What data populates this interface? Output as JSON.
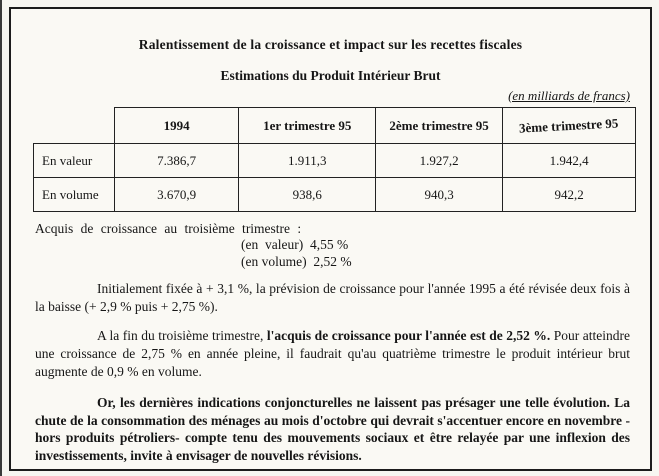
{
  "document": {
    "title": "Ralentissement de la croissance et impact sur les recettes fiscales",
    "subtitle": "Estimations du Produit Intérieur Brut",
    "unit_note": "(en milliards de francs)",
    "table": {
      "columns": [
        "1994",
        "1er trimestre 95",
        "2ème trimestre 95",
        "3ème trimestre 95"
      ],
      "rows": [
        {
          "label": "En valeur",
          "values": [
            "7.386,7",
            "1.911,3",
            "1.927,2",
            "1.942,4"
          ]
        },
        {
          "label": "En volume",
          "values": [
            "3.670,9",
            "938,6",
            "940,3",
            "942,2"
          ]
        }
      ]
    },
    "acquis": {
      "intro": "Acquis de croissance au troisième trimestre :",
      "valeur": "(en  valeur)  4,55 %",
      "volume": "(en volume)  2,52 %"
    },
    "paragraphs": [
      {
        "segments": [
          {
            "text": "Initialement fixée à + 3,1 %, la prévision de croissance pour l'année 1995 a été révisée deux fois à la baisse (+ 2,9 % puis + 2,75 %).",
            "bold": false
          }
        ]
      },
      {
        "segments": [
          {
            "text": "A la fin du troisième trimestre, ",
            "bold": false
          },
          {
            "text": "l'acquis de croissance pour l'année est de 2,52 %.",
            "bold": true
          },
          {
            "text": " Pour atteindre une croissance de 2,75 % en année pleine, il faudrait qu'au quatrième trimestre le produit intérieur brut augmente de 0,9 % en volume.",
            "bold": false
          }
        ]
      },
      {
        "segments": [
          {
            "text": "Or, les dernières indications conjoncturelles ne laissent pas présager une telle évolution. La chute de la consommation des ménages au mois d'octobre qui devrait s'accentuer encore en novembre -hors produits pétroliers- compte tenu des mouvements sociaux et être relayée par une inflexion des investissements, invite à envisager de nouvelles révisions.",
            "bold": true
          }
        ]
      }
    ]
  }
}
